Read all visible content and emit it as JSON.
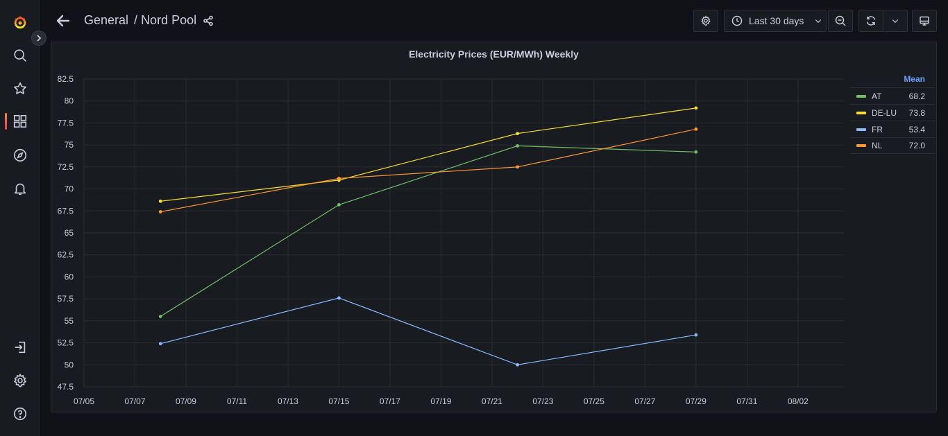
{
  "sidebar": {
    "items": [
      {
        "name": "grafana-logo-icon"
      },
      {
        "name": "search-icon"
      },
      {
        "name": "starred-icon"
      },
      {
        "name": "dashboards-icon"
      },
      {
        "name": "explore-icon"
      },
      {
        "name": "alerting-icon"
      },
      {
        "name": "sign-in-icon"
      },
      {
        "name": "configuration-icon"
      },
      {
        "name": "help-icon"
      }
    ],
    "accent": "#ff8833"
  },
  "nav": {
    "folder": "General",
    "separator": "/",
    "dashboard": "Nord Pool",
    "time_range": "Last 30 days"
  },
  "panel": {
    "title": "Electricity Prices (EUR/MWh) Weekly",
    "legend_header": "Mean"
  },
  "chart_data": {
    "type": "line",
    "title": "Electricity Prices (EUR/MWh) Weekly",
    "xlabel": "",
    "ylabel": "",
    "x_ticks": [
      "07/05",
      "07/07",
      "07/09",
      "07/11",
      "07/13",
      "07/15",
      "07/17",
      "07/19",
      "07/21",
      "07/23",
      "07/25",
      "07/27",
      "07/29",
      "07/31",
      "08/02"
    ],
    "y_ticks": [
      "47.5",
      "50",
      "52.5",
      "55",
      "57.5",
      "60",
      "62.5",
      "65",
      "67.5",
      "70",
      "72.5",
      "75",
      "77.5",
      "80",
      "82.5"
    ],
    "ylim": [
      47.5,
      82.5
    ],
    "x": [
      "07/08",
      "07/15",
      "07/22",
      "07/29"
    ],
    "grid": true,
    "legend_placement": "right",
    "series": [
      {
        "name": "AT",
        "color": "#73bf69",
        "values": [
          55.5,
          68.2,
          74.9,
          74.2
        ],
        "mean": "68.2"
      },
      {
        "name": "DE-LU",
        "color": "#fade2a",
        "values": [
          68.6,
          71.0,
          76.3,
          79.2
        ],
        "mean": "73.8"
      },
      {
        "name": "FR",
        "color": "#8ab8ff",
        "values": [
          52.4,
          57.6,
          50.0,
          53.4
        ],
        "mean": "53.4"
      },
      {
        "name": "NL",
        "color": "#ff9830",
        "values": [
          67.4,
          71.2,
          72.5,
          76.8
        ],
        "mean": "72.0"
      }
    ]
  }
}
